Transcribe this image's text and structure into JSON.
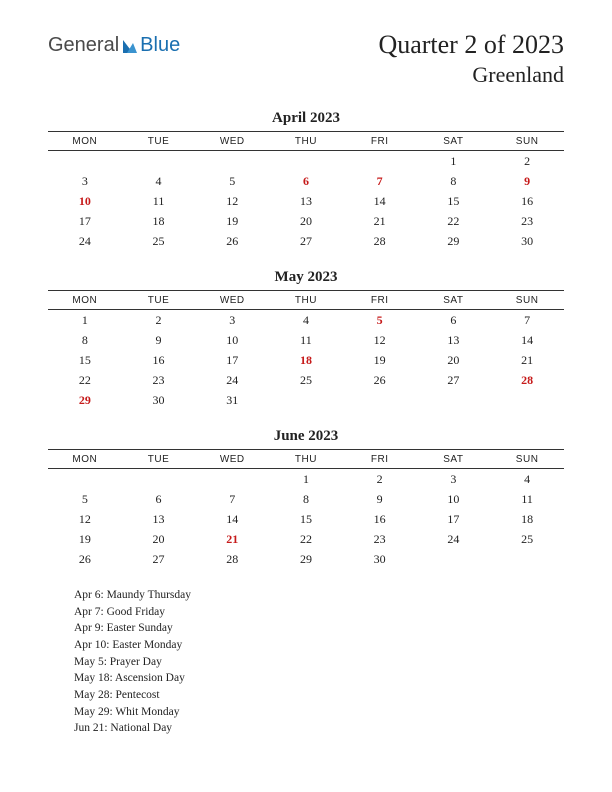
{
  "logo": {
    "part1": "General",
    "part2": "Blue",
    "color1": "#4a4a4a",
    "color2": "#1a6fb0"
  },
  "header": {
    "title": "Quarter 2 of 2023",
    "subtitle": "Greenland"
  },
  "weekdays": [
    "MON",
    "TUE",
    "WED",
    "THU",
    "FRI",
    "SAT",
    "SUN"
  ],
  "holiday_color": "#c61a1a",
  "text_color": "#222222",
  "background_color": "#ffffff",
  "border_color": "#333333",
  "months": [
    {
      "title": "April 2023",
      "weeks": [
        [
          {
            "d": ""
          },
          {
            "d": ""
          },
          {
            "d": ""
          },
          {
            "d": ""
          },
          {
            "d": ""
          },
          {
            "d": "1"
          },
          {
            "d": "2"
          }
        ],
        [
          {
            "d": "3"
          },
          {
            "d": "4"
          },
          {
            "d": "5"
          },
          {
            "d": "6",
            "h": true
          },
          {
            "d": "7",
            "h": true
          },
          {
            "d": "8"
          },
          {
            "d": "9",
            "h": true
          }
        ],
        [
          {
            "d": "10",
            "h": true
          },
          {
            "d": "11"
          },
          {
            "d": "12"
          },
          {
            "d": "13"
          },
          {
            "d": "14"
          },
          {
            "d": "15"
          },
          {
            "d": "16"
          }
        ],
        [
          {
            "d": "17"
          },
          {
            "d": "18"
          },
          {
            "d": "19"
          },
          {
            "d": "20"
          },
          {
            "d": "21"
          },
          {
            "d": "22"
          },
          {
            "d": "23"
          }
        ],
        [
          {
            "d": "24"
          },
          {
            "d": "25"
          },
          {
            "d": "26"
          },
          {
            "d": "27"
          },
          {
            "d": "28"
          },
          {
            "d": "29"
          },
          {
            "d": "30"
          }
        ]
      ]
    },
    {
      "title": "May 2023",
      "weeks": [
        [
          {
            "d": "1"
          },
          {
            "d": "2"
          },
          {
            "d": "3"
          },
          {
            "d": "4"
          },
          {
            "d": "5",
            "h": true
          },
          {
            "d": "6"
          },
          {
            "d": "7"
          }
        ],
        [
          {
            "d": "8"
          },
          {
            "d": "9"
          },
          {
            "d": "10"
          },
          {
            "d": "11"
          },
          {
            "d": "12"
          },
          {
            "d": "13"
          },
          {
            "d": "14"
          }
        ],
        [
          {
            "d": "15"
          },
          {
            "d": "16"
          },
          {
            "d": "17"
          },
          {
            "d": "18",
            "h": true
          },
          {
            "d": "19"
          },
          {
            "d": "20"
          },
          {
            "d": "21"
          }
        ],
        [
          {
            "d": "22"
          },
          {
            "d": "23"
          },
          {
            "d": "24"
          },
          {
            "d": "25"
          },
          {
            "d": "26"
          },
          {
            "d": "27"
          },
          {
            "d": "28",
            "h": true
          }
        ],
        [
          {
            "d": "29",
            "h": true
          },
          {
            "d": "30"
          },
          {
            "d": "31"
          },
          {
            "d": ""
          },
          {
            "d": ""
          },
          {
            "d": ""
          },
          {
            "d": ""
          }
        ]
      ]
    },
    {
      "title": "June 2023",
      "weeks": [
        [
          {
            "d": ""
          },
          {
            "d": ""
          },
          {
            "d": ""
          },
          {
            "d": "1"
          },
          {
            "d": "2"
          },
          {
            "d": "3"
          },
          {
            "d": "4"
          }
        ],
        [
          {
            "d": "5"
          },
          {
            "d": "6"
          },
          {
            "d": "7"
          },
          {
            "d": "8"
          },
          {
            "d": "9"
          },
          {
            "d": "10"
          },
          {
            "d": "11"
          }
        ],
        [
          {
            "d": "12"
          },
          {
            "d": "13"
          },
          {
            "d": "14"
          },
          {
            "d": "15"
          },
          {
            "d": "16"
          },
          {
            "d": "17"
          },
          {
            "d": "18"
          }
        ],
        [
          {
            "d": "19"
          },
          {
            "d": "20"
          },
          {
            "d": "21",
            "h": true
          },
          {
            "d": "22"
          },
          {
            "d": "23"
          },
          {
            "d": "24"
          },
          {
            "d": "25"
          }
        ],
        [
          {
            "d": "26"
          },
          {
            "d": "27"
          },
          {
            "d": "28"
          },
          {
            "d": "29"
          },
          {
            "d": "30"
          },
          {
            "d": ""
          },
          {
            "d": ""
          }
        ]
      ]
    }
  ],
  "holidays": [
    "Apr 6: Maundy Thursday",
    "Apr 7: Good Friday",
    "Apr 9: Easter Sunday",
    "Apr 10: Easter Monday",
    "May 5: Prayer Day",
    "May 18: Ascension Day",
    "May 28: Pentecost",
    "May 29: Whit Monday",
    "Jun 21: National Day"
  ]
}
